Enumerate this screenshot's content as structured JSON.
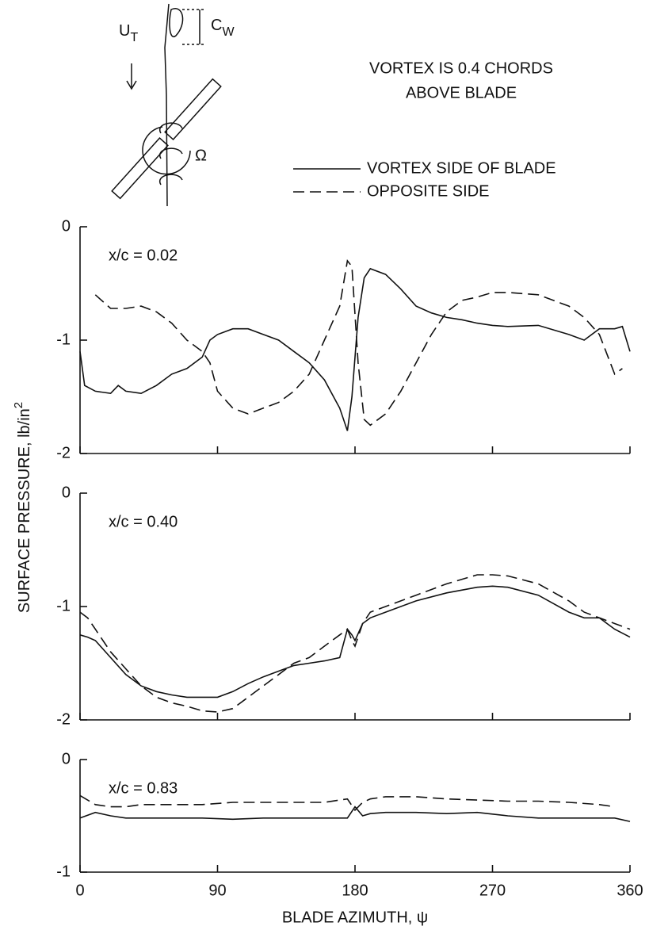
{
  "diagram": {
    "freestream": "U",
    "freestream_sub": "T",
    "wake": "C",
    "wake_sub": "W",
    "rotation": "Ω"
  },
  "chart_data": [
    {
      "type": "line",
      "title": [
        "VORTEX IS 0.4 CHORDS",
        "ABOVE BLADE"
      ],
      "legend": "upper right",
      "annotation": "x/c = 0.02",
      "xlim": [
        0,
        360
      ],
      "xticks": [
        0,
        90,
        180,
        270,
        360
      ],
      "ylim": [
        -2,
        0
      ],
      "yticks": [
        0,
        -1,
        -2
      ],
      "x": [
        0,
        3,
        10,
        20,
        25,
        30,
        40,
        50,
        60,
        70,
        80,
        85,
        90,
        100,
        110,
        120,
        130,
        140,
        150,
        160,
        170,
        175,
        178,
        182,
        186,
        190,
        200,
        210,
        220,
        230,
        240,
        250,
        260,
        270,
        280,
        300,
        320,
        330,
        340,
        350,
        355,
        360
      ],
      "series": [
        {
          "name": "VORTEX SIDE OF BLADE",
          "color": "#111111",
          "style": "solid",
          "values": [
            -1.1,
            -1.4,
            -1.45,
            -1.47,
            -1.4,
            -1.45,
            -1.47,
            -1.4,
            -1.3,
            -1.25,
            -1.15,
            -1.0,
            -0.95,
            -0.9,
            -0.9,
            -0.95,
            -1.0,
            -1.1,
            -1.2,
            -1.35,
            -1.6,
            -1.8,
            -1.5,
            -0.8,
            -0.45,
            -0.37,
            -0.42,
            -0.55,
            -0.7,
            -0.76,
            -0.8,
            -0.82,
            -0.85,
            -0.87,
            -0.88,
            -0.87,
            -0.95,
            -1.0,
            -0.9,
            -0.9,
            -0.88,
            -1.1
          ]
        },
        {
          "name": "OPPOSITE SIDE",
          "color": "#111111",
          "style": "dashed",
          "values": [
            null,
            null,
            -0.6,
            -0.72,
            -0.72,
            -0.72,
            -0.7,
            -0.75,
            -0.85,
            -1.0,
            -1.1,
            -1.2,
            -1.45,
            -1.6,
            -1.65,
            -1.6,
            -1.55,
            -1.45,
            -1.3,
            -1.0,
            -0.7,
            -0.3,
            -0.35,
            -1.2,
            -1.7,
            -1.75,
            -1.65,
            -1.45,
            -1.2,
            -0.95,
            -0.75,
            -0.65,
            -0.62,
            -0.58,
            -0.58,
            -0.6,
            -0.7,
            -0.8,
            -0.95,
            -1.3,
            -1.25,
            null
          ]
        }
      ]
    },
    {
      "type": "line",
      "annotation": "x/c = 0.40",
      "ylabel": "SURFACE PRESSURE, lb/in",
      "ylabel_sup": "2",
      "xlim": [
        0,
        360
      ],
      "xticks": [
        0,
        90,
        180,
        270,
        360
      ],
      "ylim": [
        -2,
        0
      ],
      "yticks": [
        0,
        -1,
        -2
      ],
      "x": [
        0,
        5,
        10,
        20,
        30,
        40,
        50,
        60,
        70,
        80,
        90,
        100,
        110,
        120,
        130,
        140,
        150,
        160,
        170,
        175,
        178,
        180,
        185,
        190,
        200,
        210,
        220,
        240,
        260,
        270,
        280,
        300,
        320,
        330,
        340,
        350,
        360
      ],
      "series": [
        {
          "name": "VORTEX SIDE OF BLADE",
          "color": "#111111",
          "style": "solid",
          "values": [
            -1.25,
            -1.27,
            -1.3,
            -1.45,
            -1.6,
            -1.7,
            -1.75,
            -1.78,
            -1.8,
            -1.8,
            -1.8,
            -1.75,
            -1.68,
            -1.62,
            -1.57,
            -1.52,
            -1.5,
            -1.48,
            -1.45,
            -1.2,
            -1.25,
            -1.3,
            -1.15,
            -1.1,
            -1.05,
            -1.0,
            -0.95,
            -0.88,
            -0.83,
            -0.82,
            -0.83,
            -0.9,
            -1.05,
            -1.1,
            -1.1,
            -1.2,
            -1.27
          ]
        },
        {
          "name": "OPPOSITE SIDE",
          "color": "#111111",
          "style": "dashed",
          "values": [
            -1.05,
            -1.1,
            -1.2,
            -1.4,
            -1.55,
            -1.7,
            -1.8,
            -1.85,
            -1.88,
            -1.92,
            -1.93,
            -1.9,
            -1.8,
            -1.7,
            -1.6,
            -1.5,
            -1.45,
            -1.35,
            -1.25,
            -1.2,
            -1.3,
            -1.35,
            -1.15,
            -1.05,
            -1.0,
            -0.95,
            -0.9,
            -0.8,
            -0.72,
            -0.72,
            -0.73,
            -0.8,
            -0.95,
            -1.05,
            -1.1,
            -1.15,
            -1.2
          ]
        }
      ]
    },
    {
      "type": "line",
      "annotation": "x/c = 0.83",
      "xlabel": "BLADE AZIMUTH, ψ",
      "xlim": [
        0,
        360
      ],
      "xticks": [
        0,
        90,
        180,
        270,
        360
      ],
      "ylim": [
        -1,
        0
      ],
      "yticks": [
        0,
        -1
      ],
      "x": [
        0,
        10,
        20,
        30,
        40,
        60,
        80,
        100,
        120,
        140,
        160,
        170,
        175,
        180,
        185,
        190,
        200,
        220,
        240,
        260,
        280,
        300,
        320,
        340,
        350,
        360
      ],
      "series": [
        {
          "name": "VORTEX SIDE OF BLADE",
          "color": "#111111",
          "style": "solid",
          "values": [
            -0.52,
            -0.47,
            -0.5,
            -0.52,
            -0.52,
            -0.52,
            -0.52,
            -0.53,
            -0.52,
            -0.52,
            -0.52,
            -0.52,
            -0.52,
            -0.42,
            -0.5,
            -0.48,
            -0.47,
            -0.47,
            -0.48,
            -0.47,
            -0.5,
            -0.52,
            -0.52,
            -0.52,
            -0.52,
            -0.55
          ]
        },
        {
          "name": "OPPOSITE SIDE",
          "color": "#111111",
          "style": "dashed",
          "values": [
            -0.32,
            -0.4,
            -0.42,
            -0.42,
            -0.4,
            -0.4,
            -0.4,
            -0.38,
            -0.38,
            -0.38,
            -0.38,
            -0.36,
            -0.35,
            -0.45,
            -0.38,
            -0.35,
            -0.33,
            -0.33,
            -0.35,
            -0.36,
            -0.37,
            -0.37,
            -0.38,
            -0.4,
            -0.42,
            null
          ]
        }
      ]
    }
  ]
}
